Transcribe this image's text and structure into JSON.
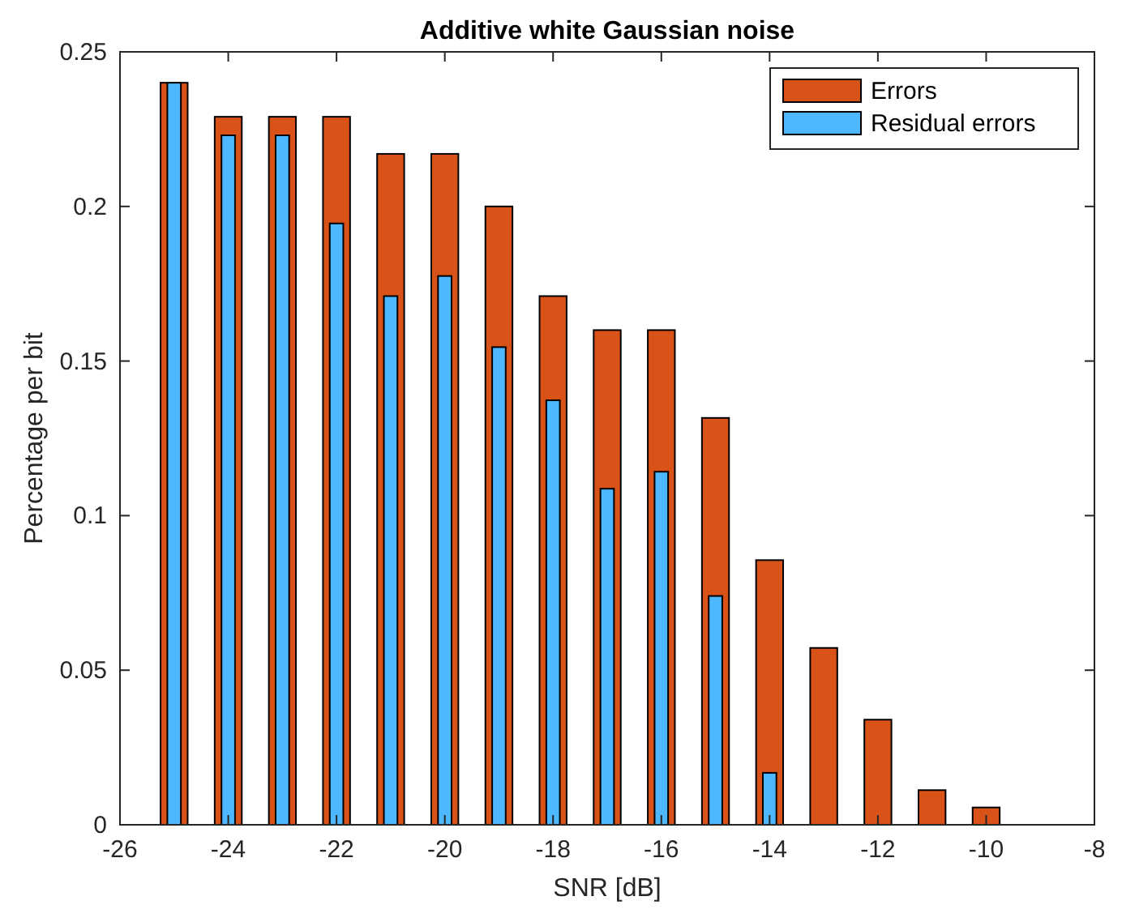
{
  "chart_data": {
    "type": "bar",
    "title": "Additive white Gaussian noise",
    "xlabel": "SNR [dB]",
    "ylabel": "Percentage per bit",
    "x": [
      -25,
      -24,
      -23,
      -22,
      -21,
      -20,
      -19,
      -18,
      -17,
      -16,
      -15,
      -14,
      -13,
      -12,
      -11,
      -10
    ],
    "series": [
      {
        "name": "Errors",
        "color": "#d95319",
        "values": [
          0.24,
          0.229,
          0.229,
          0.229,
          0.217,
          0.217,
          0.2,
          0.171,
          0.16,
          0.16,
          0.1316,
          0.0856,
          0.0572,
          0.034,
          0.0112,
          0.0056
        ]
      },
      {
        "name": "Residual errors",
        "color": "#4db8ff",
        "values": [
          0.24,
          0.223,
          0.223,
          0.1945,
          0.171,
          0.1775,
          0.1545,
          0.1373,
          0.1087,
          0.1142,
          0.074,
          0.0168,
          0,
          0,
          0,
          0
        ]
      }
    ],
    "xlim": [
      -26,
      -8
    ],
    "xticks": [
      -26,
      -24,
      -22,
      -20,
      -18,
      -16,
      -14,
      -12,
      -10,
      -8
    ],
    "ylim": [
      0,
      0.25
    ],
    "yticks": [
      0,
      0.05,
      0.1,
      0.15,
      0.2,
      0.25
    ],
    "grid": false,
    "legend": "top right"
  }
}
